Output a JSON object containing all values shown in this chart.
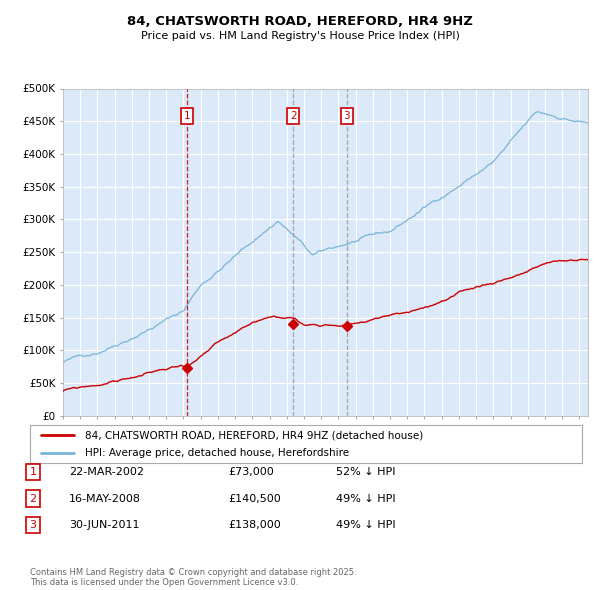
{
  "title": "84, CHATSWORTH ROAD, HEREFORD, HR4 9HZ",
  "subtitle": "Price paid vs. HM Land Registry's House Price Index (HPI)",
  "fig_bg_color": "#ffffff",
  "plot_bg_color": "#dce9f8",
  "red_line_color": "#cc0000",
  "blue_line_color": "#7ab4d8",
  "grid_color": "#ffffff",
  "ylim": [
    0,
    500000
  ],
  "yticks": [
    0,
    50000,
    100000,
    150000,
    200000,
    250000,
    300000,
    350000,
    400000,
    450000,
    500000
  ],
  "ytick_labels": [
    "£0",
    "£50K",
    "£100K",
    "£150K",
    "£200K",
    "£250K",
    "£300K",
    "£350K",
    "£400K",
    "£450K",
    "£500K"
  ],
  "xlim": [
    1995,
    2025.5
  ],
  "sales": [
    {
      "date_num": 2002.22,
      "price": 73000,
      "label": "1"
    },
    {
      "date_num": 2008.37,
      "price": 140500,
      "label": "2"
    },
    {
      "date_num": 2011.49,
      "price": 138000,
      "label": "3"
    }
  ],
  "legend_entries": [
    "84, CHATSWORTH ROAD, HEREFORD, HR4 9HZ (detached house)",
    "HPI: Average price, detached house, Herefordshire"
  ],
  "table_rows": [
    {
      "num": "1",
      "date": "22-MAR-2002",
      "price": "£73,000",
      "note": "52% ↓ HPI"
    },
    {
      "num": "2",
      "date": "16-MAY-2008",
      "price": "£140,500",
      "note": "49% ↓ HPI"
    },
    {
      "num": "3",
      "date": "30-JUN-2011",
      "price": "£138,000",
      "note": "49% ↓ HPI"
    }
  ],
  "footer": "Contains HM Land Registry data © Crown copyright and database right 2025.\nThis data is licensed under the Open Government Licence v3.0."
}
